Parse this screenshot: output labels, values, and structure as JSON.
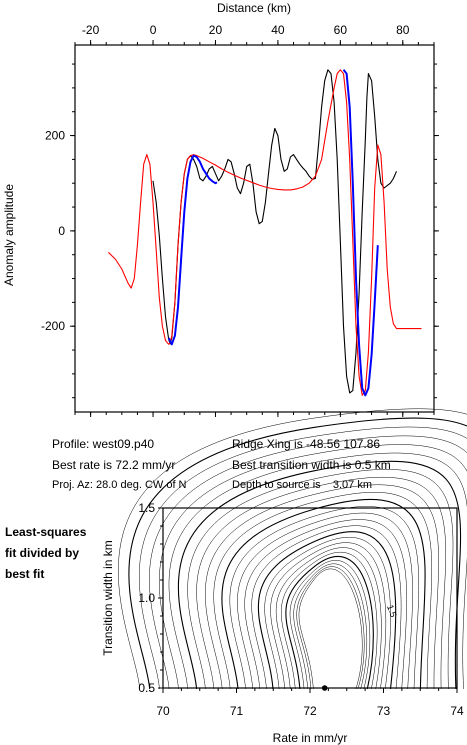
{
  "chart_data": [
    {
      "type": "line",
      "xlabel": "Distance (km)",
      "ylabel": "Anomaly amplitude",
      "xlim": [
        -25,
        90
      ],
      "ylim": [
        -380,
        390
      ],
      "xticks": [
        "-20",
        "0",
        "20",
        "40",
        "60",
        "80"
      ],
      "yticks": [
        "200",
        "0",
        "-200"
      ],
      "series": [
        {
          "color": "#000000",
          "x": [
            0,
            1,
            2,
            3,
            4,
            5,
            5.5,
            6,
            7,
            8,
            9,
            10,
            11,
            12,
            13,
            14,
            15,
            16,
            17,
            18,
            19,
            20,
            21,
            22,
            23,
            24,
            25,
            26,
            27,
            28,
            29,
            30,
            31,
            32,
            33,
            34,
            35,
            36,
            37,
            38,
            39,
            40,
            41,
            42,
            43,
            44,
            45,
            46,
            47,
            48,
            49,
            50,
            51,
            52,
            53,
            54,
            55,
            56,
            57,
            58,
            59,
            60,
            61,
            62,
            63,
            64,
            65,
            66,
            67,
            68,
            68.5,
            69,
            70,
            71,
            72,
            73,
            74,
            75,
            76,
            77,
            78
          ],
          "y": [
            105,
            60,
            -10,
            -100,
            -180,
            -228,
            -237,
            -225,
            -150,
            -30,
            60,
            120,
            150,
            158,
            150,
            135,
            110,
            105,
            115,
            130,
            135,
            120,
            105,
            115,
            130,
            150,
            145,
            120,
            90,
            78,
            100,
            135,
            140,
            100,
            40,
            15,
            20,
            60,
            120,
            180,
            215,
            200,
            150,
            125,
            130,
            155,
            160,
            150,
            140,
            132,
            125,
            115,
            108,
            110,
            180,
            260,
            315,
            338,
            330,
            270,
            150,
            -20,
            -200,
            -305,
            -340,
            -335,
            -255,
            -130,
            40,
            190,
            280,
            330,
            315,
            240,
            150,
            100,
            90,
            95,
            100,
            110,
            125
          ]
        },
        {
          "color": "#ff0000",
          "x": [
            -14.3,
            -12,
            -10,
            -8,
            -7,
            -6,
            -5,
            -4,
            -3,
            -2,
            -1,
            0,
            1,
            2,
            3,
            4,
            5,
            5.5,
            6,
            7,
            8,
            9,
            10,
            11,
            12,
            13,
            14,
            16,
            18,
            20,
            22,
            24,
            26,
            28,
            30,
            32,
            34,
            36,
            38,
            40,
            42,
            44,
            46,
            48,
            50,
            52,
            54,
            56,
            58,
            59,
            60,
            61,
            62,
            63,
            64,
            65,
            66,
            67,
            68,
            69,
            70,
            71,
            72,
            73,
            74,
            75,
            76,
            77,
            78,
            80,
            82,
            84,
            86
          ],
          "y": [
            -45,
            -60,
            -80,
            -110,
            -120,
            -100,
            -30,
            60,
            140,
            160,
            140,
            60,
            -40,
            -140,
            -200,
            -230,
            -238,
            -235,
            -220,
            -150,
            -30,
            60,
            120,
            150,
            158,
            160,
            158,
            152,
            145,
            138,
            130,
            123,
            117,
            111,
            106,
            101,
            96,
            92,
            89,
            87,
            86,
            86,
            88,
            92,
            100,
            115,
            150,
            230,
            300,
            330,
            338,
            330,
            270,
            150,
            -20,
            -200,
            -305,
            -345,
            -335,
            -255,
            -100,
            90,
            180,
            160,
            60,
            -80,
            -160,
            -195,
            -205,
            -205,
            -205,
            -205,
            -205
          ]
        },
        {
          "color": "#0000ff",
          "x": [
            5,
            6,
            7,
            8,
            9,
            10,
            11,
            12,
            13,
            14,
            15,
            16,
            17,
            18,
            19,
            20,
            20.5
          ],
          "y": [
            -225,
            -238,
            -220,
            -160,
            -60,
            40,
            110,
            145,
            158,
            155,
            145,
            130,
            120,
            110,
            104,
            100,
            102
          ]
        },
        {
          "color": "#0000ff",
          "x": [
            61,
            62,
            63,
            64,
            65,
            66,
            67,
            68,
            69,
            70,
            71,
            72
          ],
          "y": [
            338,
            330,
            260,
            100,
            -100,
            -240,
            -330,
            -345,
            -330,
            -260,
            -150,
            -30
          ]
        }
      ]
    },
    {
      "type": "contour",
      "xlabel": "Rate in mm/yr",
      "ylabel": "Transition width in km",
      "xlim": [
        70,
        74
      ],
      "ylim": [
        0.5,
        1.5
      ],
      "xticks": [
        "70",
        "71",
        "72",
        "73",
        "74"
      ],
      "yticks": [
        "1.5",
        "1.0",
        "0.5"
      ],
      "contour_label": "1.5",
      "best_fit": {
        "rate": 72.2,
        "width": 0.5
      }
    }
  ],
  "info": {
    "profile": "Profile: west09.p40",
    "best_rate": "Best rate is 72.2 mm/yr",
    "proj_az": "Proj. Az: 28.0 deg. CW of N",
    "ridge_xing": "Ridge Xing is -48.56 107.86",
    "best_transition": "Best transition width is 0.5 km",
    "depth": "Depth to source is    3.07 km"
  },
  "side_note": [
    "Least-squares",
    "fit divided by",
    "best fit"
  ]
}
